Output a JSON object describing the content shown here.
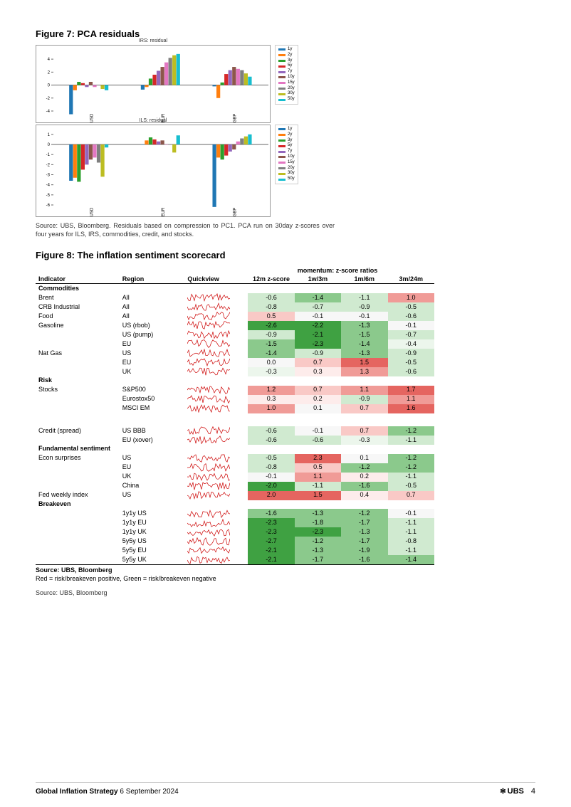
{
  "figure7": {
    "title": "Figure 7: PCA residuals",
    "legend_items": [
      {
        "label": "1y",
        "color": "#1f77b4"
      },
      {
        "label": "2y",
        "color": "#ff7f0e"
      },
      {
        "label": "3y",
        "color": "#2ca02c"
      },
      {
        "label": "5y",
        "color": "#d62728"
      },
      {
        "label": "7y",
        "color": "#9467bd"
      },
      {
        "label": "10y",
        "color": "#8c564b"
      },
      {
        "label": "15y",
        "color": "#e377c2"
      },
      {
        "label": "20y",
        "color": "#7f7f7f"
      },
      {
        "label": "30y",
        "color": "#bcbd22"
      },
      {
        "label": "50y",
        "color": "#17becf"
      }
    ],
    "charts": [
      {
        "title": "IRS: residual",
        "ylim": [
          -4,
          5
        ],
        "yticks": [
          -4,
          -2,
          0,
          2,
          4
        ],
        "categories": [
          "USD",
          "EUR",
          "GBP"
        ],
        "series": [
          {
            "cat": "USD",
            "values": [
              -4.5,
              -0.8,
              0.5,
              0.3,
              -0.3,
              0.5,
              -0.3,
              0.0,
              -0.6,
              -0.8
            ]
          },
          {
            "cat": "EUR",
            "values": [
              -0.7,
              -0.3,
              1.0,
              1.6,
              2.2,
              2.8,
              3.5,
              4.2,
              4.6,
              4.8
            ]
          },
          {
            "cat": "GBP",
            "values": [
              -0.2,
              -2.0,
              0.4,
              1.7,
              2.3,
              2.8,
              2.5,
              2.3,
              1.8,
              1.3
            ]
          }
        ]
      },
      {
        "title": "ILS: residual",
        "ylim": [
          -6,
          1.2
        ],
        "yticks": [
          -6,
          -5,
          -4,
          -3,
          -2,
          -1,
          0,
          1
        ],
        "categories": [
          "USD",
          "EUR",
          "GBP"
        ],
        "series": [
          {
            "cat": "USD",
            "values": [
              -3.6,
              -3.3,
              -3.7,
              -2.5,
              -2.0,
              -1.5,
              -1.3,
              -1.8,
              -3.2,
              -0.3
            ]
          },
          {
            "cat": "EUR",
            "values": [
              0.0,
              0.4,
              0.7,
              0.5,
              0.3,
              0.4,
              0.0,
              0.0,
              -0.8,
              0.9
            ]
          },
          {
            "cat": "GBP",
            "values": [
              -6.2,
              -1.3,
              -1.5,
              -1.1,
              -0.7,
              -0.5,
              0.3,
              0.6,
              0.8,
              1.0
            ]
          }
        ]
      }
    ],
    "source": "Source: UBS, Bloomberg. Residuals based on compression to PC1. PCA run on 30day z-scores over four years for ILS, IRS, commodities, credit, and stocks."
  },
  "figure8": {
    "title": "Figure 8: The inflation sentiment scorecard",
    "columns": [
      "Indicator",
      "Region",
      "Quickview",
      "12m z-score",
      "1w/3m",
      "1m/6m",
      "3m/24m"
    ],
    "momentum_label": "momentum: z-score ratios",
    "sections": [
      {
        "name": "Commodities",
        "rows": [
          {
            "ind": "Brent",
            "reg": "All",
            "v": [
              -0.6,
              -1.4,
              -1.1,
              1.0
            ]
          },
          {
            "ind": "CRB Industrial",
            "reg": "All",
            "v": [
              -0.8,
              -0.7,
              -0.9,
              -0.5
            ]
          },
          {
            "ind": "Food",
            "reg": "All",
            "v": [
              0.5,
              -0.1,
              -0.1,
              -0.6
            ]
          },
          {
            "ind": "Gasoline",
            "reg": "US (rbob)",
            "v": [
              -2.6,
              -2.2,
              -1.3,
              -0.1
            ]
          },
          {
            "ind": "",
            "reg": "US (pump)",
            "v": [
              -0.9,
              -2.1,
              -1.5,
              -0.7
            ]
          },
          {
            "ind": "",
            "reg": "EU",
            "v": [
              -1.5,
              -2.3,
              -1.4,
              -0.4
            ]
          },
          {
            "ind": "Nat Gas",
            "reg": "US",
            "v": [
              -1.4,
              -0.9,
              -1.3,
              -0.9
            ]
          },
          {
            "ind": "",
            "reg": "EU",
            "v": [
              0.0,
              0.7,
              1.5,
              -0.5
            ]
          },
          {
            "ind": "",
            "reg": "UK",
            "v": [
              -0.3,
              0.3,
              1.3,
              -0.6
            ]
          }
        ]
      },
      {
        "name": "Risk",
        "rows": [
          {
            "ind": "Stocks",
            "reg": "S&P500",
            "v": [
              1.2,
              0.7,
              1.1,
              1.7
            ]
          },
          {
            "ind": "",
            "reg": "Eurostox50",
            "v": [
              0.3,
              0.2,
              -0.9,
              1.1
            ]
          },
          {
            "ind": "",
            "reg": "MSCI EM",
            "v": [
              1.0,
              0.1,
              0.7,
              1.6
            ]
          }
        ]
      },
      {
        "name": "",
        "rows": [
          {
            "ind": "Credit (spread)",
            "reg": "US BBB",
            "v": [
              -0.6,
              -0.1,
              0.7,
              -1.2
            ]
          },
          {
            "ind": "",
            "reg": "EU (xover)",
            "v": [
              -0.6,
              -0.6,
              -0.3,
              -1.1
            ]
          }
        ]
      },
      {
        "name": "Fundamental sentiment",
        "rows": [
          {
            "ind": "Econ surprises",
            "reg": "US",
            "v": [
              -0.5,
              2.3,
              0.1,
              -1.2
            ]
          },
          {
            "ind": "",
            "reg": "EU",
            "v": [
              -0.8,
              0.5,
              -1.2,
              -1.2
            ]
          },
          {
            "ind": "",
            "reg": "UK",
            "v": [
              -0.1,
              1.1,
              0.2,
              -1.1
            ]
          },
          {
            "ind": "",
            "reg": "China",
            "v": [
              -2.0,
              -1.1,
              -1.6,
              -0.5
            ]
          },
          {
            "ind": "Fed weekly index",
            "reg": "US",
            "v": [
              2.0,
              1.5,
              0.4,
              0.7
            ]
          }
        ]
      },
      {
        "name": "Breakeven",
        "rows": [
          {
            "ind": "",
            "reg": "1y1y US",
            "v": [
              -1.6,
              -1.3,
              -1.2,
              -0.1
            ]
          },
          {
            "ind": "",
            "reg": "1y1y EU",
            "v": [
              -2.3,
              -1.8,
              -1.7,
              -1.1
            ]
          },
          {
            "ind": "",
            "reg": "1y1y UK",
            "v": [
              -2.3,
              -2.3,
              -1.3,
              -1.1
            ]
          },
          {
            "ind": "",
            "reg": "5y5y US",
            "v": [
              -2.7,
              -1.2,
              -1.7,
              -0.8
            ]
          },
          {
            "ind": "",
            "reg": "5y5y EU",
            "v": [
              -2.1,
              -1.3,
              -1.9,
              -1.1
            ]
          },
          {
            "ind": "",
            "reg": "5y5y UK",
            "v": [
              -2.1,
              -1.7,
              -1.6,
              -1.4
            ]
          }
        ]
      }
    ],
    "footer_bold": "Source: UBS, Bloomberg",
    "footer_note": "Red = risk/breakeven positive, Green = risk/breakeven negative",
    "source": "Source: UBS, Bloomberg"
  },
  "footer": {
    "left_bold": "Global Inflation Strategy",
    "left_date": "6 September 2024",
    "brand": "UBS",
    "page": "4"
  },
  "heatmap_colors": {
    "neg_strong": "#3fa142",
    "neg_med": "#8bc98c",
    "neg_light": "#d0ead0",
    "neg_faint": "#ecf6ec",
    "zero": "#f7f7f7",
    "pos_faint": "#fdeceb",
    "pos_light": "#f9c9c6",
    "pos_med": "#f09b97",
    "pos_strong": "#e56560"
  }
}
